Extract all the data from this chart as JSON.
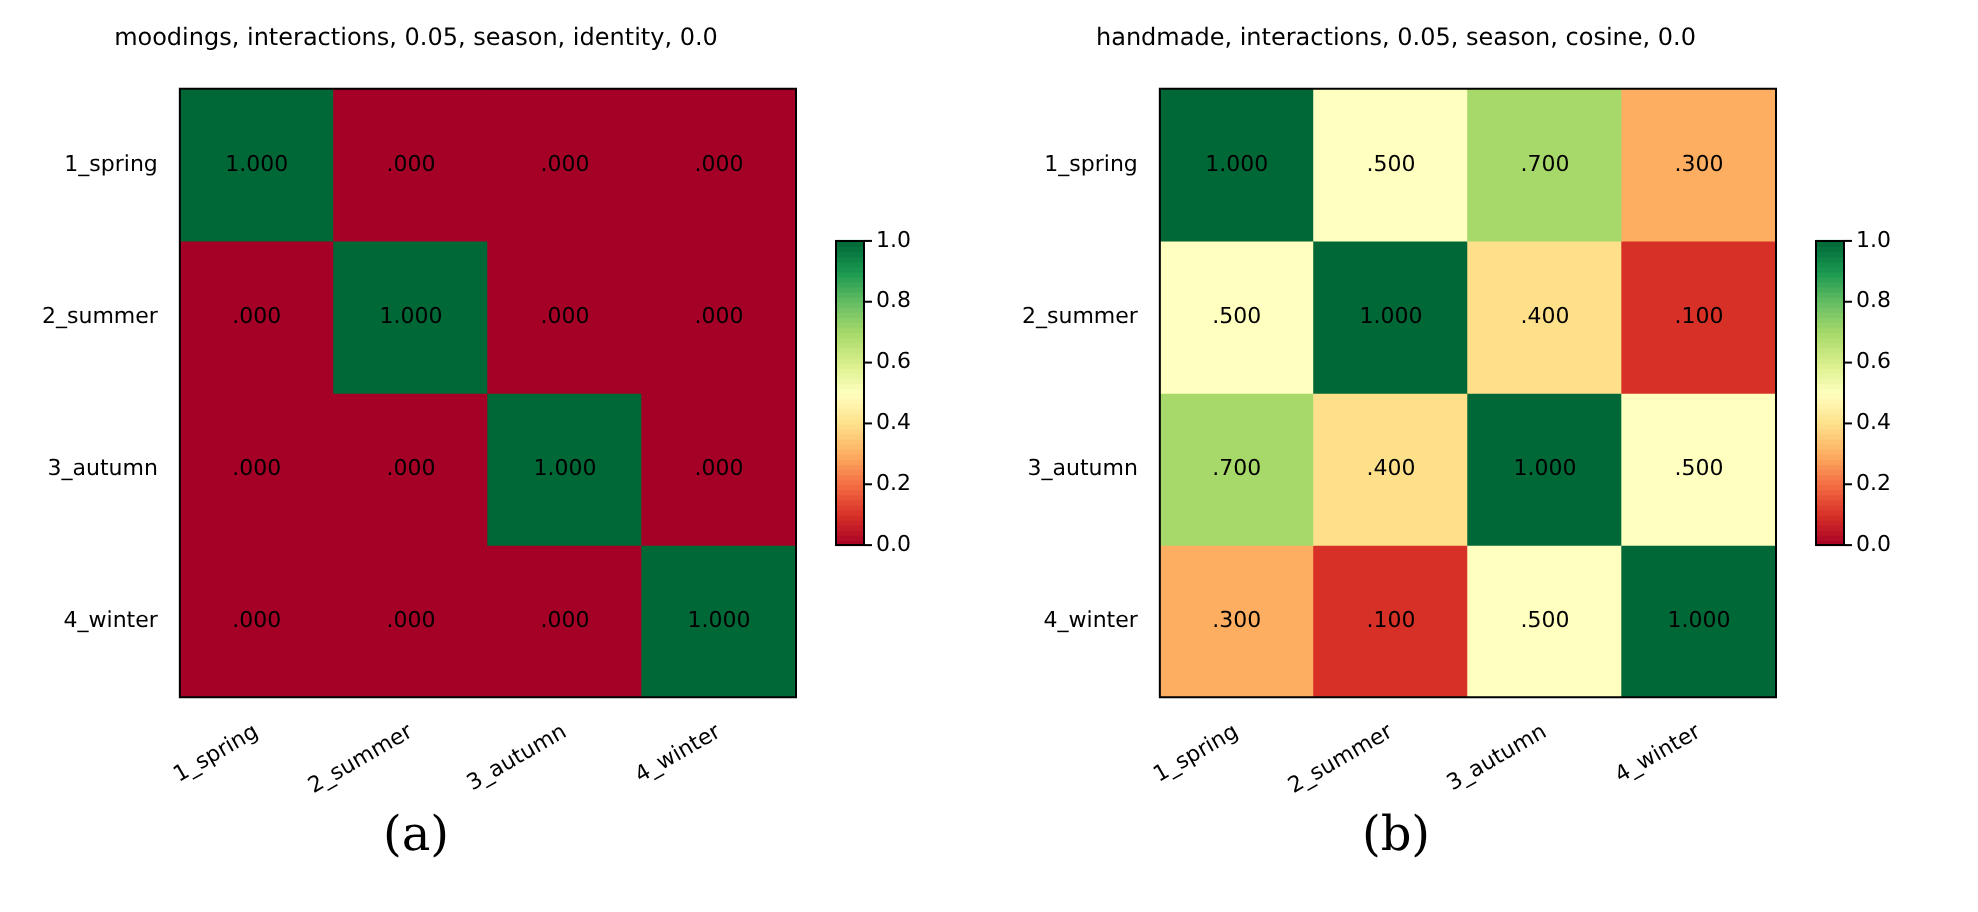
{
  "chart_data": [
    {
      "type": "heatmap",
      "title": "moodings, interactions, 0.05, season, identity, 0.0",
      "categories": [
        "1_spring",
        "2_summer",
        "3_autumn",
        "4_winter"
      ],
      "y_categories": [
        "1_spring",
        "2_summer",
        "3_autumn",
        "4_winter"
      ],
      "cells": [
        [
          1,
          0,
          0,
          0
        ],
        [
          0,
          1,
          0,
          0
        ],
        [
          0,
          0,
          1,
          0
        ],
        [
          0,
          0,
          0,
          1
        ]
      ],
      "cell_labels": [
        [
          "1.000",
          ".000",
          ".000",
          ".000"
        ],
        [
          ".000",
          "1.000",
          ".000",
          ".000"
        ],
        [
          ".000",
          ".000",
          "1.000",
          ".000"
        ],
        [
          ".000",
          ".000",
          ".000",
          "1.000"
        ]
      ],
      "clim": [
        0,
        1
      ],
      "cticks": [
        {
          "value": 0,
          "label": "0.0"
        },
        {
          "value": 0.2,
          "label": "0.2"
        },
        {
          "value": 0.4,
          "label": "0.4"
        },
        {
          "value": 0.6,
          "label": "0.6"
        },
        {
          "value": 0.8,
          "label": "0.8"
        },
        {
          "value": 1,
          "label": "1.0"
        }
      ],
      "annotations": [
        "(a)"
      ]
    },
    {
      "type": "heatmap",
      "title": "handmade, interactions, 0.05, season, cosine, 0.0",
      "categories": [
        "1_spring",
        "2_summer",
        "3_autumn",
        "4_winter"
      ],
      "y_categories": [
        "1_spring",
        "2_summer",
        "3_autumn",
        "4_winter"
      ],
      "cells": [
        [
          1,
          0.5,
          0.7,
          0.3
        ],
        [
          0.5,
          1,
          0.4,
          0.1
        ],
        [
          0.7,
          0.4,
          1,
          0.5
        ],
        [
          0.3,
          0.1,
          0.5,
          1
        ]
      ],
      "cell_labels": [
        [
          "1.000",
          ".500",
          ".700",
          ".300"
        ],
        [
          ".500",
          "1.000",
          ".400",
          ".100"
        ],
        [
          ".700",
          ".400",
          "1.000",
          ".500"
        ],
        [
          ".300",
          ".100",
          ".500",
          "1.000"
        ]
      ],
      "clim": [
        0,
        1
      ],
      "cticks": [
        {
          "value": 0,
          "label": "0.0"
        },
        {
          "value": 0.2,
          "label": "0.2"
        },
        {
          "value": 0.4,
          "label": "0.4"
        },
        {
          "value": 0.6,
          "label": "0.6"
        },
        {
          "value": 0.8,
          "label": "0.8"
        },
        {
          "value": 1,
          "label": "1.0"
        }
      ],
      "annotations": [
        "(b)"
      ]
    }
  ]
}
